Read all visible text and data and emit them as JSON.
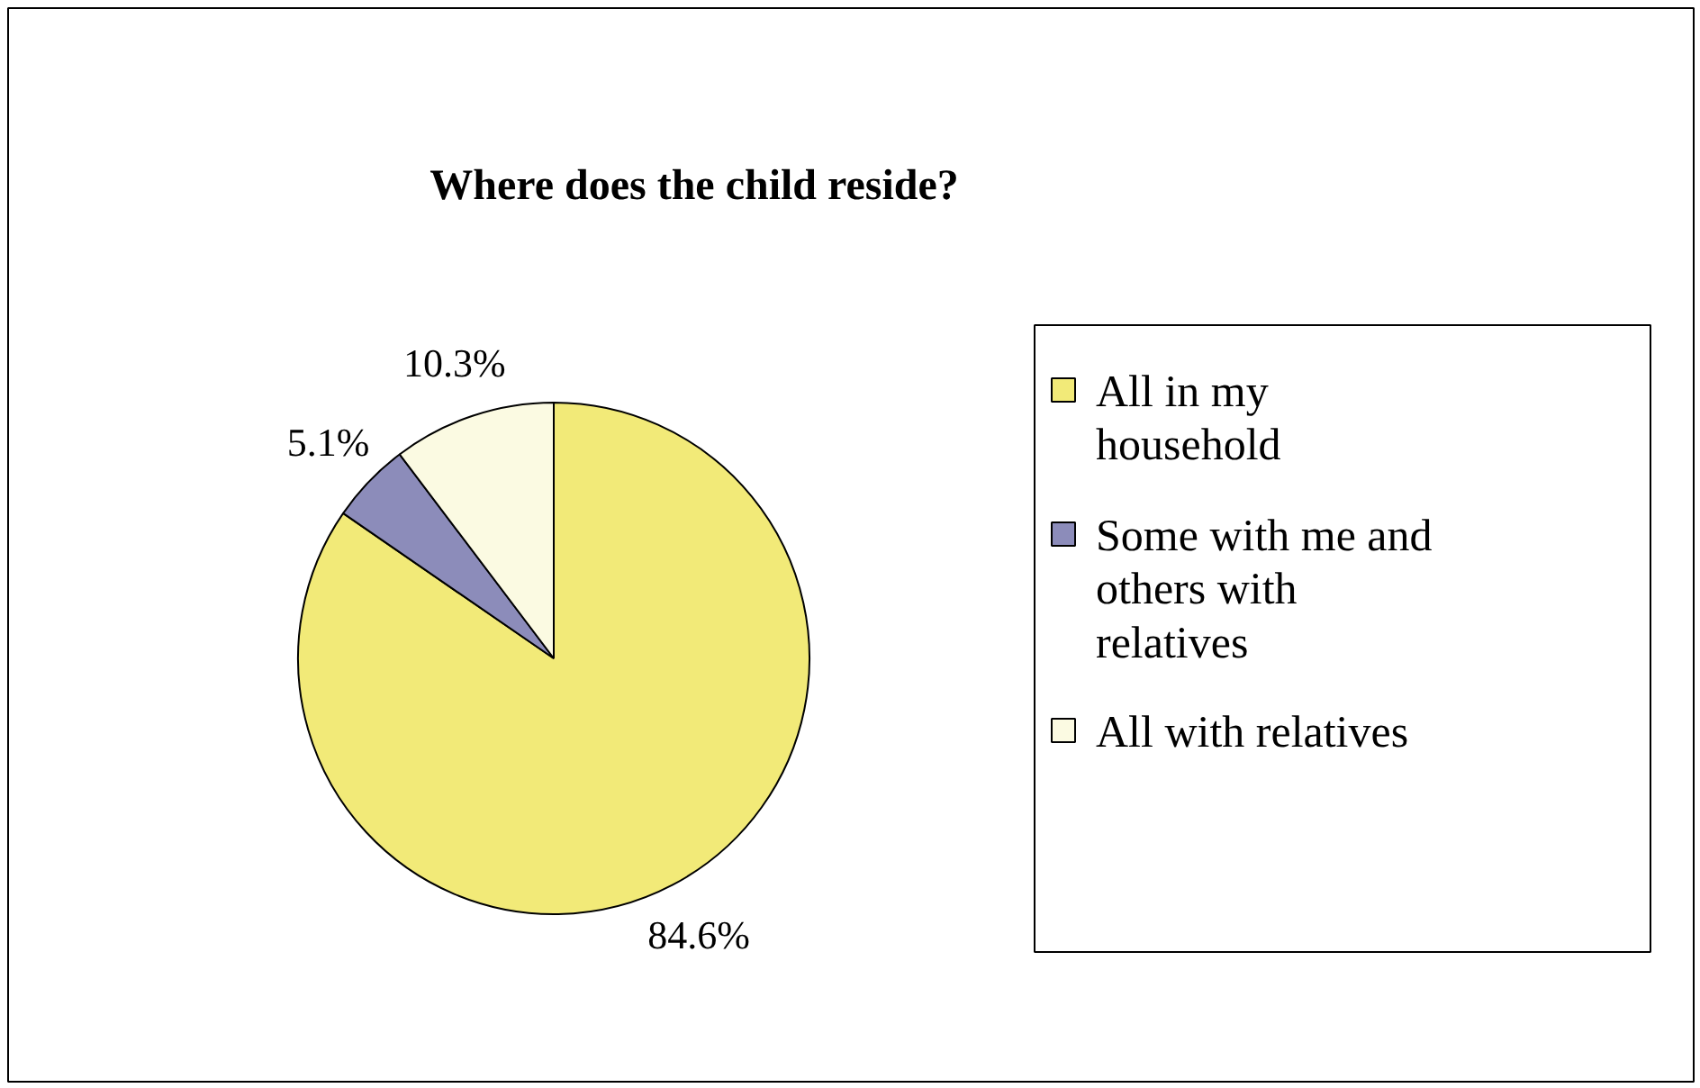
{
  "chart_data": {
    "type": "pie",
    "title": "Where does the child reside?",
    "categories": [
      "All in my household",
      "Some with me and others with relatives",
      "All with relatives"
    ],
    "values": [
      84.6,
      5.1,
      10.3
    ],
    "colors": [
      "#f2ea78",
      "#8c8cba",
      "#fbfae2"
    ],
    "value_labels": [
      "84.6%",
      "5.1%",
      "10.3%"
    ],
    "legend": "right"
  }
}
